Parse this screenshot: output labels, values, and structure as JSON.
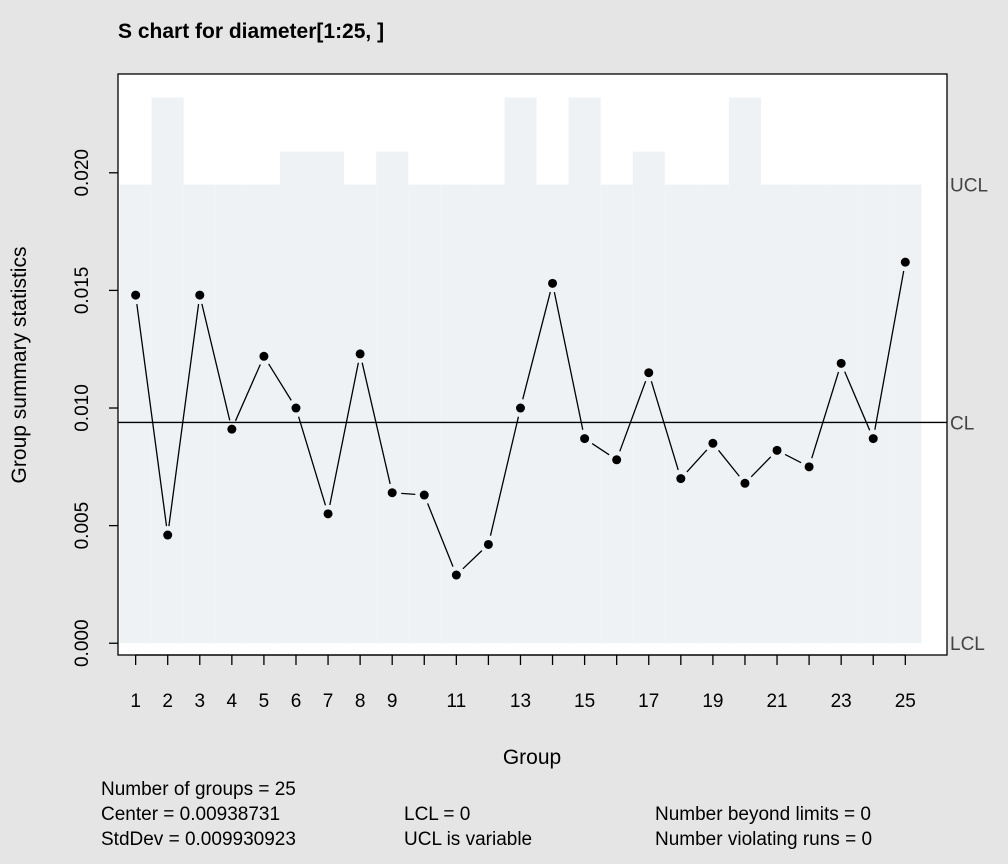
{
  "chart_data": {
    "type": "line",
    "title": "S chart for diameter[1:25, ]",
    "xlabel": "Group",
    "ylabel": "Group summary statistics",
    "x": [
      1,
      2,
      3,
      4,
      5,
      6,
      7,
      8,
      9,
      10,
      11,
      12,
      13,
      14,
      15,
      16,
      17,
      18,
      19,
      20,
      21,
      22,
      23,
      24,
      25
    ],
    "x_tick_labels": [
      "1",
      "2",
      "3",
      "4",
      "5",
      "6",
      "7",
      "8",
      "9",
      "",
      "11",
      "",
      "13",
      "",
      "15",
      "",
      "17",
      "",
      "19",
      "",
      "21",
      "",
      "23",
      "",
      "25"
    ],
    "series": [
      {
        "values": [
          0.0148,
          0.0046,
          0.0148,
          0.0091,
          0.0122,
          0.01,
          0.0055,
          0.0123,
          0.0064,
          0.0063,
          0.0029,
          0.0042,
          0.01,
          0.0153,
          0.0087,
          0.0078,
          0.0115,
          0.007,
          0.0085,
          0.0068,
          0.0082,
          0.0075,
          0.0119,
          0.0087,
          0.0162
        ]
      }
    ],
    "ucl": [
      0.0195,
      0.0232,
      0.0195,
      0.0195,
      0.0195,
      0.0209,
      0.0209,
      0.0195,
      0.0209,
      0.0195,
      0.0195,
      0.0195,
      0.0232,
      0.0195,
      0.0232,
      0.0195,
      0.0209,
      0.0195,
      0.0195,
      0.0232,
      0.0195,
      0.0195,
      0.0195,
      0.0195,
      0.0195
    ],
    "center_line": 0.00938731,
    "lcl_value": 0,
    "ylim": [
      -0.0005,
      0.0242
    ],
    "xlim": [
      0.45,
      26.3
    ],
    "y_ticks": [
      0,
      0.005,
      0.01,
      0.015,
      0.02
    ],
    "y_tick_labels": [
      "0.000",
      "0.005",
      "0.010",
      "0.015",
      "0.020"
    ],
    "limit_labels": {
      "ucl": "UCL",
      "cl": "CL",
      "lcl": "LCL"
    },
    "colors": {
      "limits_fill": "#eff2f5",
      "background": "#e5e5e5",
      "plot_bg": "#ffffff",
      "line": "#000000"
    },
    "grid": false,
    "legend": "none"
  },
  "stats": {
    "groups": "Number of groups = 25",
    "center": "Center = 0.00938731",
    "stddev": "StdDev = 0.009930923",
    "lcl": "LCL = 0",
    "ucl": "UCL is variable",
    "beyond": "Number beyond limits = 0",
    "violating": "Number violating runs = 0"
  }
}
